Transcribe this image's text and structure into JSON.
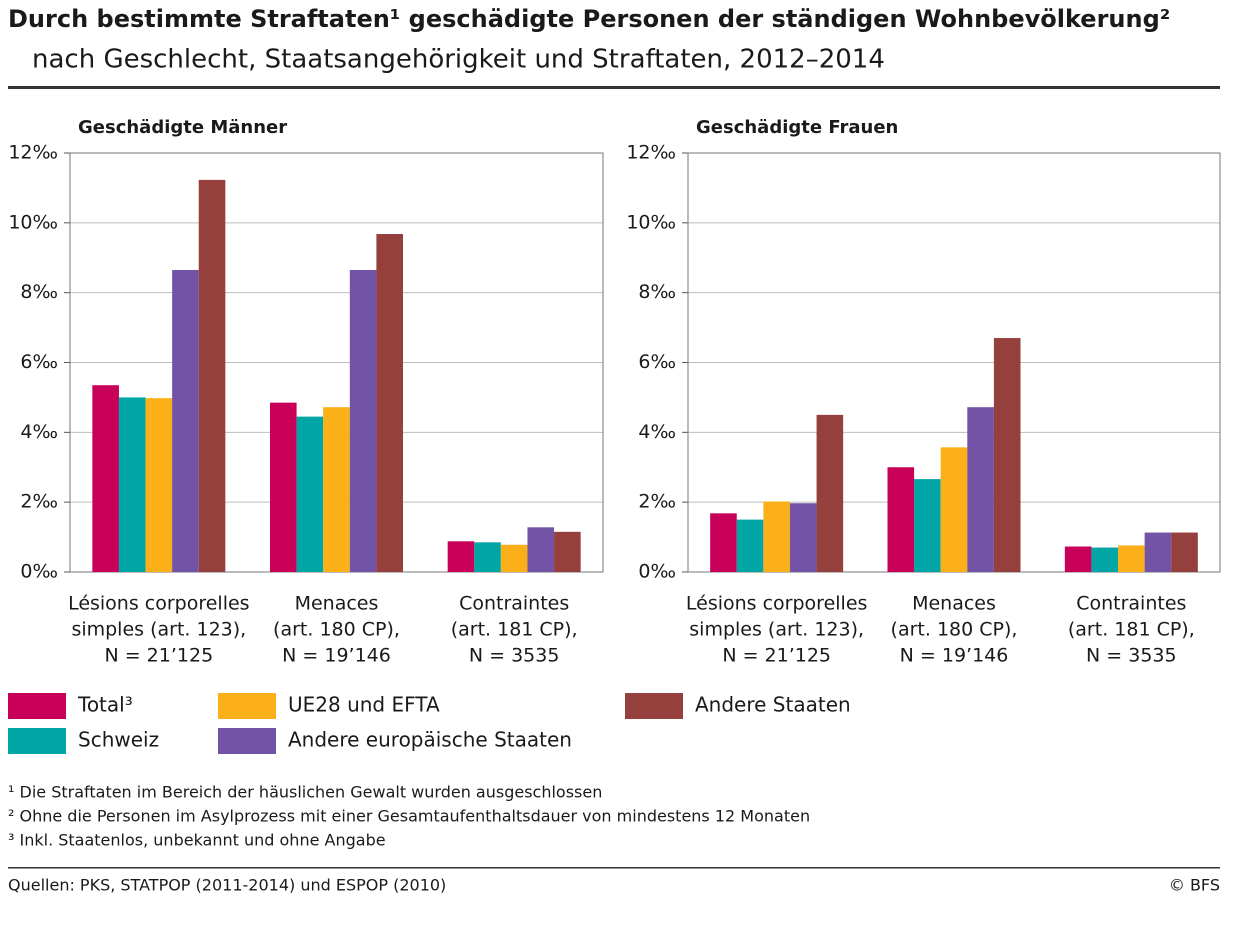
{
  "title": "Durch bestimmte Straftaten¹ geschädigte Personen der ständigen Wohnbevölkerung²",
  "subtitle": "nach Geschlecht, Staatsangehörigkeit und Straftaten, 2012–2014",
  "footnotes": [
    "¹ Die Straftaten im Bereich der häuslichen Gewalt wurden ausgeschlossen",
    "² Ohne die Personen im Asylprozess mit einer Gesamtaufenthaltsdauer von mindestens 12 Monaten",
    "³ Inkl. Staatenlos, unbekannt und ohne Angabe"
  ],
  "source": "Quellen: PKS, STATPOP (2011-2014) und ESPOP (2010)",
  "copyright": "© BFS",
  "chart_data": [
    {
      "type": "bar",
      "title": "Geschädigte Männer",
      "categories": [
        [
          "Lésions corporelles",
          "simples (art. 123),",
          "N = 21’125"
        ],
        [
          "Menaces",
          "(art. 180 CP),",
          "N = 19’146"
        ],
        [
          "Contraintes",
          "(art. 181 CP),",
          "N = 3535"
        ]
      ],
      "series": [
        {
          "name": "Total³",
          "color": "#c8005a",
          "values": [
            5.35,
            4.85,
            0.88
          ]
        },
        {
          "name": "Schweiz",
          "color": "#00a5a5",
          "values": [
            5.0,
            4.45,
            0.85
          ]
        },
        {
          "name": "UE28 und EFTA",
          "color": "#fbb01a",
          "values": [
            4.98,
            4.72,
            0.78
          ]
        },
        {
          "name": "Andere europäische Staaten",
          "color": "#7353a5",
          "values": [
            8.65,
            8.65,
            1.28
          ]
        },
        {
          "name": "Andere Staaten",
          "color": "#95403d",
          "values": [
            11.23,
            9.68,
            1.15
          ]
        }
      ],
      "ylim": [
        0,
        12
      ],
      "yticks": [
        {
          "value": 0,
          "label": "0‰"
        },
        {
          "value": 2,
          "label": "2‰"
        },
        {
          "value": 4,
          "label": "4‰"
        },
        {
          "value": 6,
          "label": "6‰"
        },
        {
          "value": 8,
          "label": "8‰"
        },
        {
          "value": 10,
          "label": "10‰"
        },
        {
          "value": 12,
          "label": "12‰"
        }
      ],
      "grid": true
    },
    {
      "type": "bar",
      "title": "Geschädigte Frauen",
      "categories": [
        [
          "Lésions corporelles",
          "simples (art. 123),",
          "N = 21’125"
        ],
        [
          "Menaces",
          "(art. 180 CP),",
          "N = 19’146"
        ],
        [
          "Contraintes",
          "(art. 181 CP),",
          "N = 3535"
        ]
      ],
      "series": [
        {
          "name": "Total³",
          "color": "#c8005a",
          "values": [
            1.68,
            3.0,
            0.73
          ]
        },
        {
          "name": "Schweiz",
          "color": "#00a5a5",
          "values": [
            1.5,
            2.66,
            0.7
          ]
        },
        {
          "name": "UE28 und EFTA",
          "color": "#fbb01a",
          "values": [
            2.02,
            3.57,
            0.76
          ]
        },
        {
          "name": "Andere europäische Staaten",
          "color": "#7353a5",
          "values": [
            1.97,
            4.72,
            1.13
          ]
        },
        {
          "name": "Andere Staaten",
          "color": "#95403d",
          "values": [
            4.5,
            6.7,
            1.13
          ]
        }
      ],
      "ylim": [
        0,
        12
      ],
      "yticks": [
        {
          "value": 0,
          "label": "0‰"
        },
        {
          "value": 2,
          "label": "2‰"
        },
        {
          "value": 4,
          "label": "4‰"
        },
        {
          "value": 6,
          "label": "6‰"
        },
        {
          "value": 8,
          "label": "8‰"
        },
        {
          "value": 10,
          "label": "10‰"
        },
        {
          "value": 12,
          "label": "12‰"
        }
      ],
      "grid": true
    }
  ]
}
